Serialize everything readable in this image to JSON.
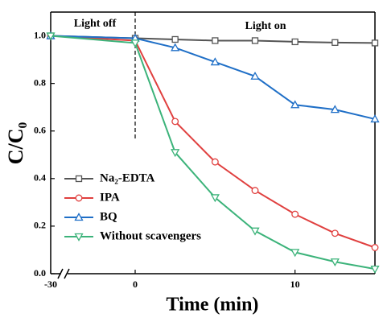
{
  "chart_data": {
    "type": "line",
    "xlabel": "Time (min)",
    "ylabel": "C/C₀",
    "annotations": [
      "Light off",
      "Light on"
    ],
    "vline": 0,
    "x_break": [
      -30,
      0
    ],
    "x": [
      -30,
      0,
      2.5,
      5,
      7.5,
      10,
      12.5,
      15
    ],
    "xlim": [
      -30,
      15
    ],
    "xticks": [
      -30,
      0,
      10
    ],
    "ylim": [
      0,
      1.1
    ],
    "yticks": [
      {
        "value": 0,
        "label": "0.0"
      },
      0.2,
      0.4,
      0.6,
      0.8,
      {
        "value": 1,
        "label": "1.0"
      }
    ],
    "legend": "center left",
    "series": [
      {
        "name": "Na₂-EDTA",
        "color": "#555555",
        "marker": "square",
        "values": [
          1.0,
          0.99,
          0.985,
          0.98,
          0.98,
          0.975,
          0.972,
          0.97
        ]
      },
      {
        "name": "IPA",
        "color": "#e0403f",
        "marker": "circle",
        "values": [
          1.0,
          0.98,
          0.64,
          0.47,
          0.35,
          0.25,
          0.17,
          0.11
        ]
      },
      {
        "name": "BQ",
        "color": "#1f6fc7",
        "marker": "triangle-up",
        "values": [
          1.0,
          0.99,
          0.95,
          0.89,
          0.83,
          0.71,
          0.69,
          0.65
        ]
      },
      {
        "name": "Without scavengers",
        "color": "#3cb37a",
        "marker": "triangle-down",
        "values": [
          1.0,
          0.97,
          0.51,
          0.32,
          0.18,
          0.09,
          0.05,
          0.02
        ]
      }
    ]
  }
}
